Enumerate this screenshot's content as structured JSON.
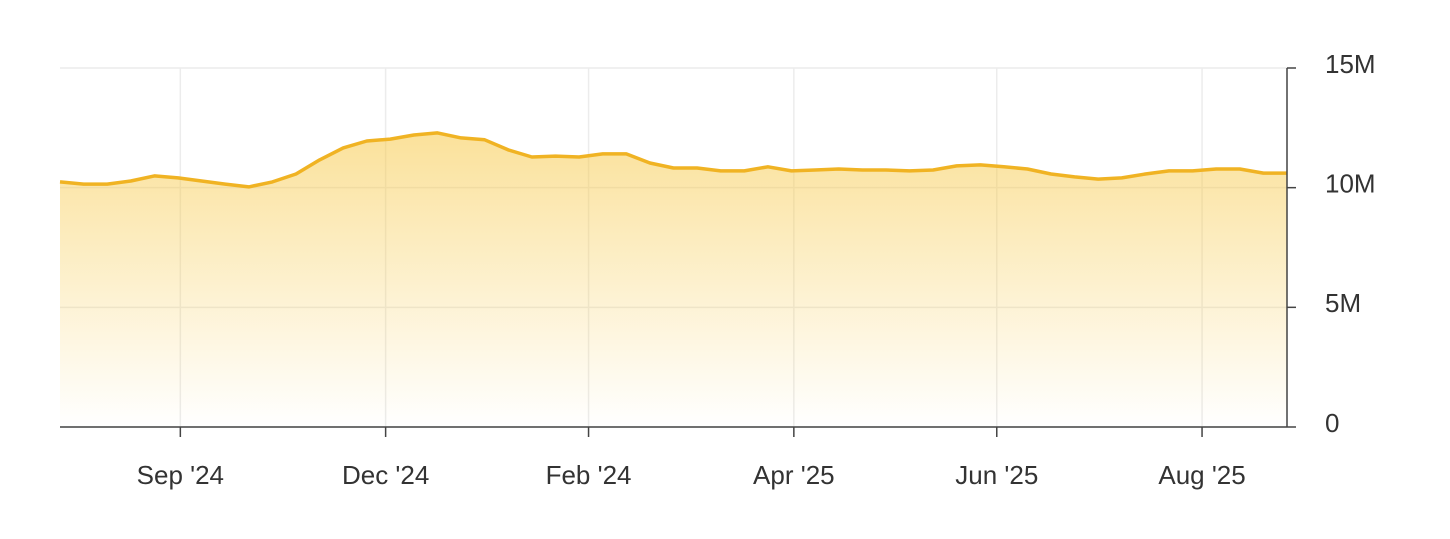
{
  "chart_data": {
    "type": "area",
    "color": "#f0b323",
    "values": [
      10240000,
      10150000,
      10150000,
      10280000,
      10490000,
      10410000,
      10280000,
      10150000,
      10030000,
      10240000,
      10570000,
      11160000,
      11660000,
      11950000,
      12030000,
      12200000,
      12290000,
      12080000,
      12000000,
      11580000,
      11280000,
      11320000,
      11280000,
      11410000,
      11410000,
      11030000,
      10820000,
      10820000,
      10700000,
      10700000,
      10870000,
      10700000,
      10740000,
      10780000,
      10740000,
      10740000,
      10700000,
      10740000,
      10910000,
      10950000,
      10870000,
      10780000,
      10570000,
      10450000,
      10360000,
      10410000,
      10570000,
      10700000,
      10700000,
      10780000,
      10780000,
      10610000,
      10610000
    ],
    "xlim": [
      0,
      52
    ],
    "xticks": [
      {
        "value": 5.1,
        "label": "Sep '24"
      },
      {
        "value": 13.8,
        "label": "Dec '24"
      },
      {
        "value": 22.4,
        "label": "Feb '24"
      },
      {
        "value": 31.1,
        "label": "Apr '25"
      },
      {
        "value": 39.7,
        "label": "Jun '25"
      },
      {
        "value": 48.4,
        "label": "Aug '25"
      }
    ],
    "ylim": [
      0,
      15000000
    ],
    "yticks": [
      0,
      {
        "value": 5000000,
        "label": "5M"
      },
      {
        "value": 10000000,
        "label": "10M"
      },
      {
        "value": 15000000,
        "label": "15M"
      }
    ],
    "grid": true
  }
}
